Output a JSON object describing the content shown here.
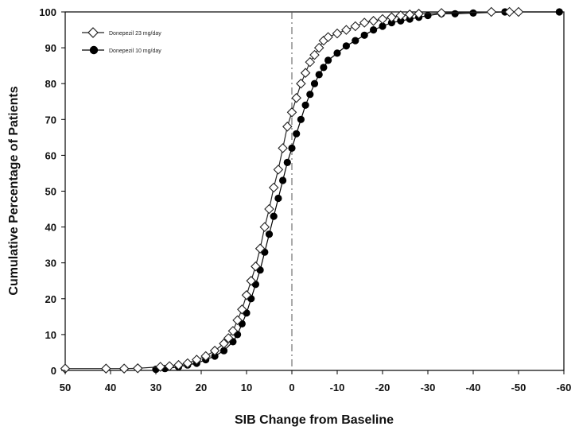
{
  "chart_data": {
    "type": "line",
    "title": "",
    "xlabel": "SIB Change from Baseline",
    "ylabel": "Cumulative Percentage of Patients",
    "xlim": [
      50,
      -60
    ],
    "ylim": [
      0,
      100
    ],
    "x_reversed": true,
    "x_ticks": [
      50,
      40,
      30,
      20,
      10,
      0,
      -10,
      -20,
      -30,
      -40,
      -50,
      -60
    ],
    "x_tick_labels": [
      "50",
      "40",
      "30",
      "20",
      "10",
      "0",
      "-10",
      "-20",
      "-30",
      "-40",
      "-50",
      "-60"
    ],
    "y_ticks": [
      0,
      10,
      20,
      30,
      40,
      50,
      60,
      70,
      80,
      90,
      100
    ],
    "y_tick_labels": [
      "0",
      "10",
      "20",
      "30",
      "40",
      "50",
      "60",
      "70",
      "80",
      "90",
      "100"
    ],
    "reference_line_x": 0,
    "grid": false,
    "legend_position": "top-left",
    "series": [
      {
        "name": "Donepezil 23 mg/day",
        "marker": "open-diamond",
        "color": "#222222",
        "x": [
          50,
          41,
          37,
          34,
          29,
          27,
          25,
          23,
          21,
          19,
          17,
          15,
          14,
          13,
          12,
          11,
          10,
          9,
          8,
          7,
          6,
          5,
          4,
          3,
          2,
          1,
          0,
          -1,
          -2,
          -3,
          -4,
          -5,
          -6,
          -7,
          -8,
          -10,
          -12,
          -14,
          -16,
          -18,
          -20,
          -22,
          -24,
          -26,
          -28,
          -33,
          -44,
          -48,
          -50
        ],
        "y": [
          0.5,
          0.5,
          0.5,
          0.6,
          1,
          1.2,
          1.5,
          2,
          3,
          4,
          5.5,
          7.5,
          9,
          11,
          14,
          17,
          21,
          25,
          29,
          34,
          40,
          45,
          51,
          56,
          62,
          68,
          72,
          76,
          80,
          83,
          86,
          88,
          90,
          92,
          93,
          94,
          95,
          96,
          97,
          97.5,
          98,
          98.5,
          99,
          99.3,
          99.5,
          99.7,
          100,
          100,
          100
        ]
      },
      {
        "name": "Donepezil 10 mg/day",
        "marker": "filled-circle",
        "color": "#000000",
        "x": [
          30,
          28,
          25,
          23,
          21,
          19,
          17,
          15,
          13,
          12,
          11,
          10,
          9,
          8,
          7,
          6,
          5,
          4,
          3,
          2,
          1,
          0,
          -1,
          -2,
          -3,
          -4,
          -5,
          -6,
          -7,
          -8,
          -10,
          -12,
          -14,
          -16,
          -18,
          -20,
          -22,
          -24,
          -26,
          -28,
          -30,
          -33,
          -36,
          -40,
          -47,
          -59
        ],
        "y": [
          0.3,
          0.5,
          1,
          1.5,
          2,
          3,
          4,
          5.5,
          8,
          10,
          13,
          16,
          20,
          24,
          28,
          33,
          38,
          43,
          48,
          53,
          58,
          62,
          66,
          70,
          74,
          77,
          80,
          82.5,
          84.5,
          86.5,
          88.5,
          90.5,
          92,
          93.5,
          95,
          96,
          97,
          97.5,
          98,
          98.5,
          99,
          99.5,
          99.5,
          99.7,
          100,
          100
        ]
      }
    ]
  }
}
